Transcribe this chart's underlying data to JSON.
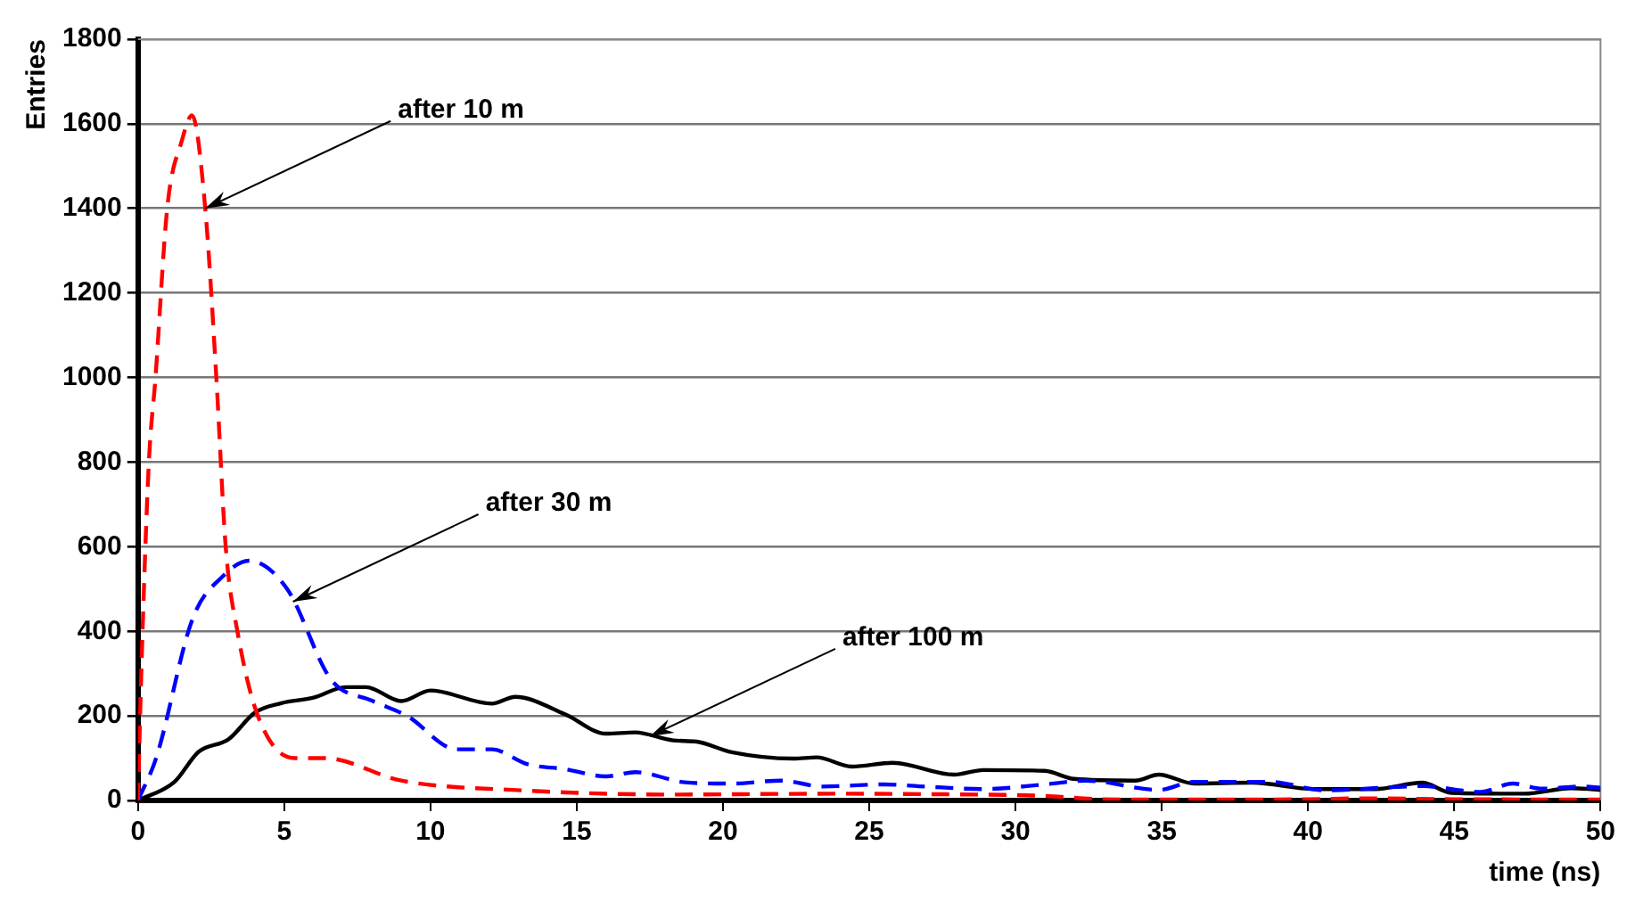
{
  "chart_data": {
    "type": "line",
    "xlabel": "time (ns)",
    "ylabel": "Entries",
    "xlim": [
      0,
      50
    ],
    "xticks": [
      0,
      5,
      10,
      15,
      20,
      25,
      30,
      35,
      40,
      45,
      50
    ],
    "ylim": [
      0,
      1800
    ],
    "yticks": [
      0,
      200,
      400,
      600,
      800,
      1000,
      1200,
      1400,
      1600,
      1800
    ],
    "grid": "y",
    "legend": false,
    "marker": "none",
    "annotations": [
      {
        "text": "after 10 m",
        "x": 2.3,
        "y": 1400
      },
      {
        "text": "after 30 m",
        "x": 5.3,
        "y": 470
      },
      {
        "text": "after 100 m",
        "x": 17.5,
        "y": 152
      }
    ],
    "series": [
      {
        "color": "#ff0000",
        "line_style": "dashed",
        "x": [
          0,
          0.12,
          0.37,
          0.6,
          1.0,
          1.5,
          1.85,
          2.3,
          2.68,
          3.0,
          3.4,
          4.1,
          5.35,
          6.4,
          9.0,
          13.1,
          18.3,
          23.8,
          26.9,
          30.9,
          32.9,
          35,
          40,
          42,
          45,
          50
        ],
        "values": [
          0,
          315,
          795,
          1000,
          1400,
          1560,
          1620,
          1400,
          1000,
          600,
          400,
          200,
          100,
          100,
          47,
          24,
          14,
          16,
          15,
          11,
          3,
          2,
          3,
          5,
          3,
          2
        ]
      },
      {
        "color": "#0000ff",
        "line_style": "dashed",
        "x": [
          0,
          0.62,
          1.87,
          2.9,
          3.8,
          5.1,
          6.6,
          8.0,
          9.2,
          10.9,
          12.1,
          13.3,
          14.6,
          16.0,
          17.0,
          18.7,
          20.3,
          22.0,
          23.4,
          25.5,
          26.9,
          28.9,
          31,
          32.4,
          34.9,
          36.1,
          38.7,
          40.6,
          43.9,
          45.9,
          47,
          48,
          49.4,
          50
        ],
        "values": [
          0,
          100,
          430,
          530,
          567,
          500,
          286,
          236,
          200,
          121,
          121,
          86,
          74,
          57,
          67,
          43,
          40,
          47,
          33,
          38,
          33,
          27,
          38,
          47,
          25,
          44,
          44,
          24,
          34,
          20,
          40,
          28,
          33,
          30
        ]
      },
      {
        "color": "#000000",
        "line_style": "solid",
        "x": [
          0,
          1.25,
          2.07,
          3.1,
          4.0,
          4.9,
          6.0,
          7.1,
          7.8,
          9.0,
          10.0,
          12.1,
          12.9,
          14.6,
          16.0,
          17.0,
          18.3,
          19.1,
          20.3,
          22.4,
          23.2,
          24.4,
          25.8,
          27.9,
          28.9,
          31,
          32,
          34.1,
          34.9,
          36.1,
          38.1,
          40.2,
          42.3,
          43.9,
          44.9,
          47.4,
          49,
          50
        ],
        "values": [
          0,
          44,
          115,
          145,
          208,
          230,
          243,
          268,
          268,
          235,
          260,
          229,
          245,
          204,
          158,
          161,
          142,
          139,
          114,
          99,
          102,
          80,
          89,
          61,
          72,
          70,
          51,
          47,
          61,
          40,
          42,
          27,
          27,
          42,
          18,
          16,
          29,
          25
        ]
      }
    ]
  }
}
